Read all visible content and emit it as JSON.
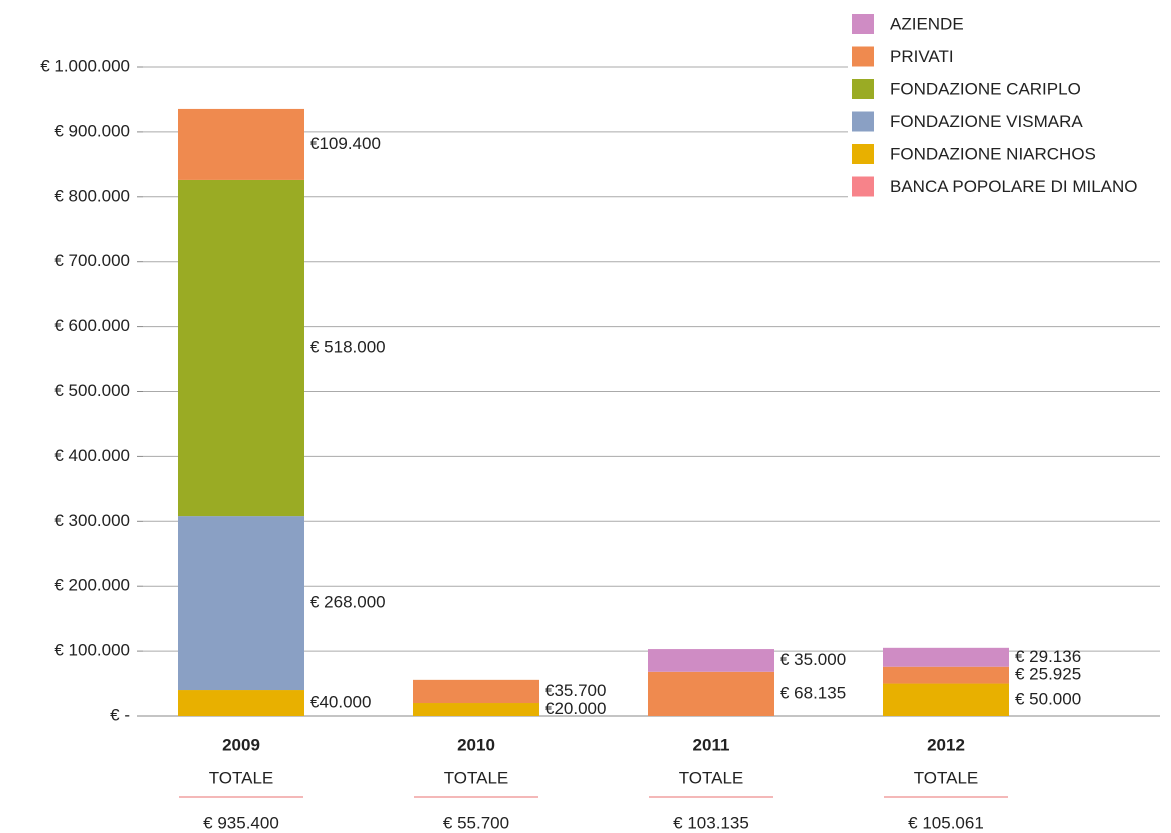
{
  "chart_data": {
    "type": "stacked_bar",
    "categories": [
      "2009",
      "2010",
      "2011",
      "2012"
    ],
    "series": [
      {
        "name": "AZIENDE",
        "color": "#cf8cc4",
        "values": [
          null,
          null,
          35000,
          29136
        ],
        "value_labels": [
          null,
          null,
          "€ 35.000",
          "€ 29.136"
        ]
      },
      {
        "name": "PRIVATI",
        "color": "#ef8a4f",
        "values": [
          109400,
          35700,
          68135,
          25925
        ],
        "value_labels": [
          "€109.400",
          "€35.700",
          "€ 68.135",
          "€ 25.925"
        ]
      },
      {
        "name": "FONDAZIONE CARIPLO",
        "color": "#9aab24",
        "values": [
          518000,
          null,
          null,
          null
        ],
        "value_labels": [
          "€ 518.000",
          null,
          null,
          null
        ]
      },
      {
        "name": "FONDAZIONE VISMARA",
        "color": "#8aa0c4",
        "values": [
          268000,
          null,
          null,
          null
        ],
        "value_labels": [
          "€ 268.000",
          null,
          null,
          null
        ]
      },
      {
        "name": "FONDAZIONE NIARCHOS",
        "color": "#e8b000",
        "values": [
          40000,
          20000,
          null,
          50000
        ],
        "value_labels": [
          "€40.000",
          "€20.000",
          null,
          "€ 50.000"
        ]
      },
      {
        "name": "BANCA POPOLARE DI MILANO",
        "color": "#f7838a",
        "values": [
          null,
          null,
          null,
          null
        ],
        "value_labels": [
          null,
          null,
          null,
          null
        ]
      }
    ],
    "total_heading": "TOTALE",
    "totals": [
      935400,
      55700,
      103135,
      105061
    ],
    "total_labels": [
      "€ 935.400",
      "€ 55.700",
      "€ 103.135",
      "€ 105.061"
    ],
    "ylim": [
      0,
      1000000
    ],
    "yticks": [
      {
        "value": 0,
        "label": "€ -"
      },
      {
        "value": 100000,
        "label": "€ 100.000"
      },
      {
        "value": 200000,
        "label": "€ 200.000"
      },
      {
        "value": 300000,
        "label": "€ 300.000"
      },
      {
        "value": 400000,
        "label": "€ 400.000"
      },
      {
        "value": 500000,
        "label": "€ 500.000"
      },
      {
        "value": 600000,
        "label": "€ 600.000"
      },
      {
        "value": 700000,
        "label": "€ 700.000"
      },
      {
        "value": 800000,
        "label": "€ 800.000"
      },
      {
        "value": 900000,
        "label": "€ 900.000"
      },
      {
        "value": 1000000,
        "label": "€ 1.000.000"
      }
    ],
    "grid": true,
    "legend": "top-right"
  }
}
